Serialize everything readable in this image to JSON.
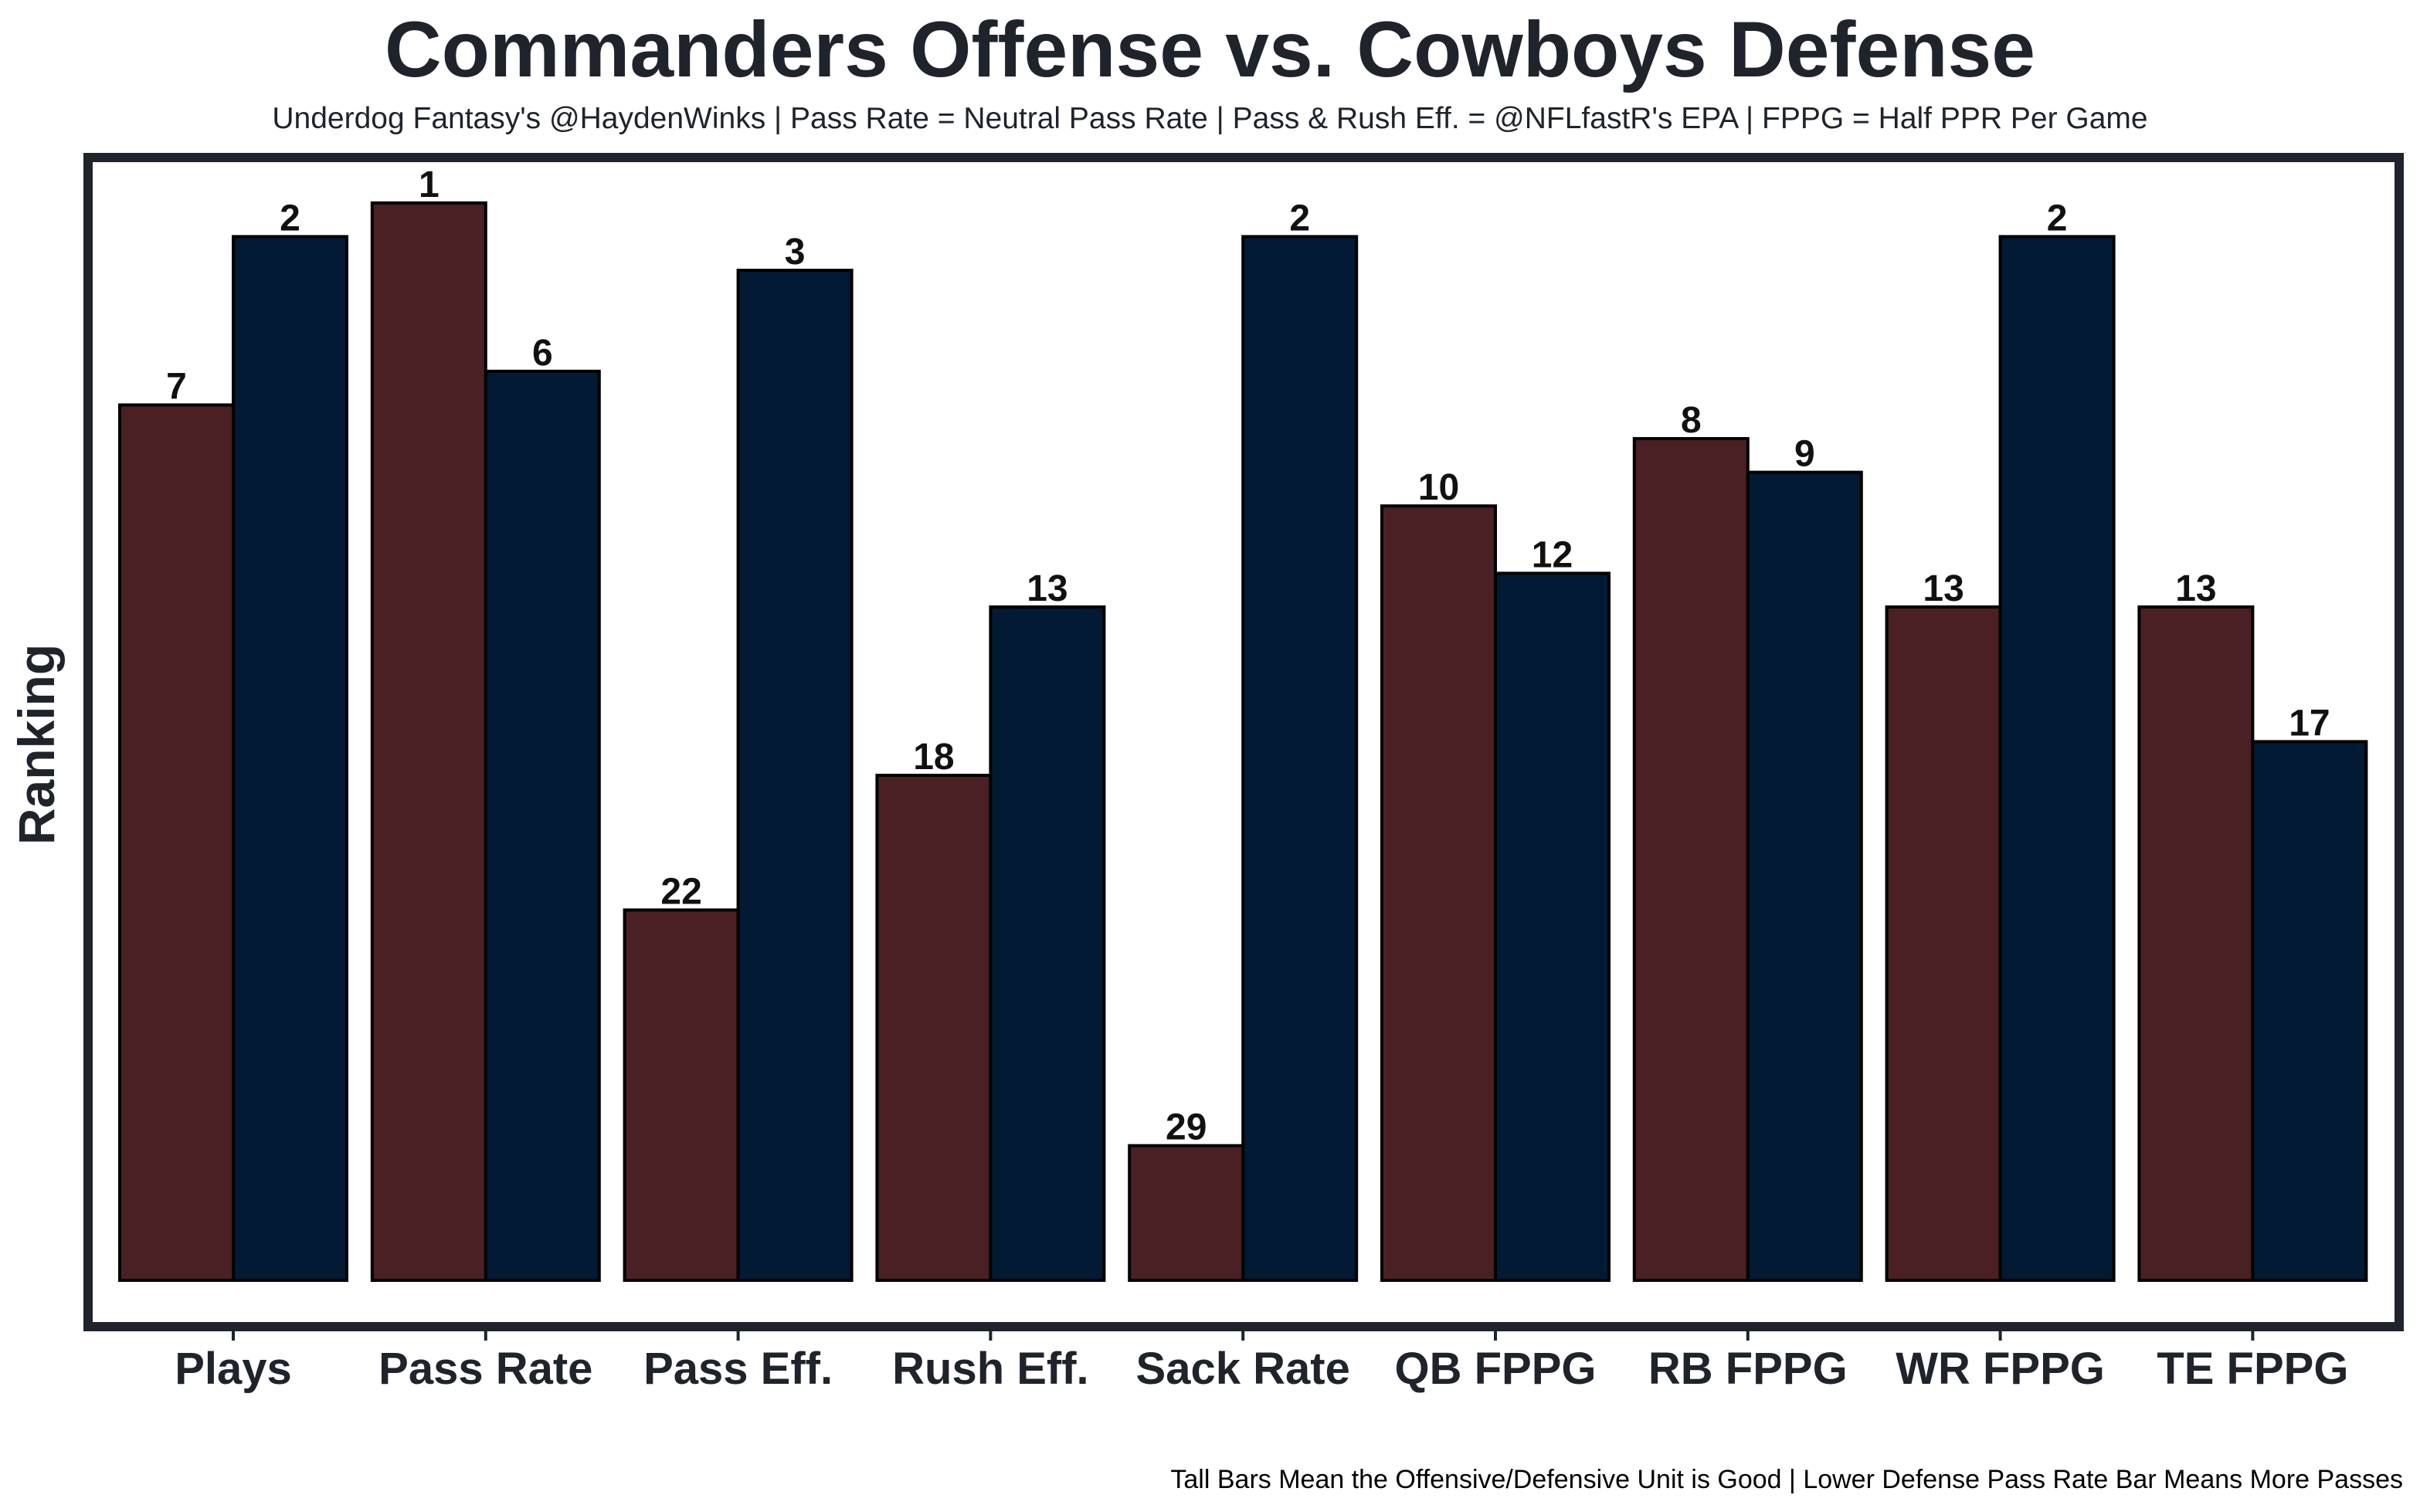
{
  "title": "Commanders Offense vs. Cowboys Defense",
  "subtitle": "Underdog Fantasy's @HaydenWinks | Pass Rate = Neutral Pass Rate | Pass & Rush Eff. = @NFLfastR's EPA | FPPG = Half PPR Per Game",
  "footer": "Tall Bars Mean the Offensive/Defensive Unit is Good | Lower Defense Pass Rate Bar Means More Passes",
  "colors": {
    "offense": "#4a2024",
    "defense": "#021a33",
    "frame": "#1f232b",
    "text": "#1f232b"
  },
  "chart_data": {
    "type": "bar",
    "title": "Commanders Offense vs. Cowboys Defense",
    "xlabel": "",
    "ylabel": "Ranking",
    "categories": [
      "Plays",
      "Pass Rate",
      "Pass Eff.",
      "Rush Eff.",
      "Sack Rate",
      "QB FPPG",
      "RB FPPG",
      "WR FPPG",
      "TE FPPG"
    ],
    "series": [
      {
        "name": "Commanders Offense",
        "values": [
          7,
          1,
          22,
          18,
          29,
          10,
          8,
          13,
          13
        ]
      },
      {
        "name": "Cowboys Defense",
        "values": [
          2,
          6,
          3,
          13,
          2,
          12,
          9,
          2,
          17
        ]
      }
    ],
    "bar_height_rule": "height = 33 - rank",
    "yticks_shown": false,
    "grid": false
  }
}
